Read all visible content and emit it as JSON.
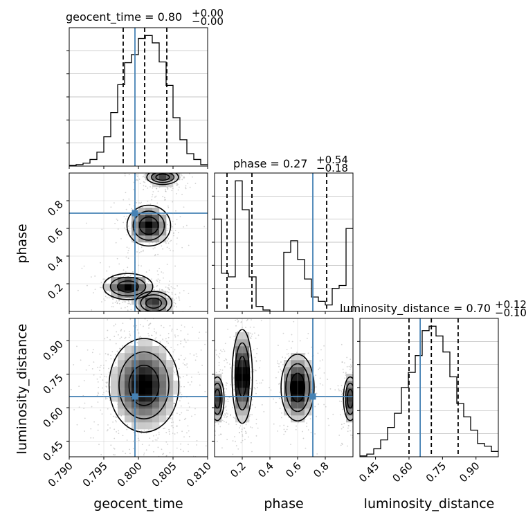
{
  "chart_data": {
    "type": "corner",
    "parameters": [
      "geocent_time",
      "phase",
      "luminosity_distance"
    ],
    "truths": {
      "geocent_time": 0.7995,
      "phase": 0.71,
      "luminosity_distance": 0.65
    },
    "titles": [
      {
        "parameter": "geocent_time",
        "label": "geocent_time = 0.80",
        "sup": "+0.00",
        "sub": "−0.00"
      },
      {
        "parameter": "phase",
        "label": "phase = 0.27",
        "sup": "+0.54",
        "sub": "−0.18"
      },
      {
        "parameter": "luminosity_distance",
        "label": "luminosity_distance = 0.70",
        "sup": "+0.12",
        "sub": "−0.10"
      }
    ],
    "ranges": {
      "geocent_time": [
        0.79,
        0.81
      ],
      "phase": [
        0.0,
        1.0
      ],
      "luminosity_distance": [
        0.38,
        1.0
      ]
    },
    "tick_labels": {
      "geocent_time": [
        "0.790",
        "0.795",
        "0.800",
        "0.805",
        "0.810"
      ],
      "phase": [
        "0.2",
        "0.4",
        "0.6",
        "0.8"
      ],
      "luminosity_distance": [
        "0.45",
        "0.60",
        "0.75",
        "0.90"
      ]
    },
    "quantiles": {
      "geocent_time": [
        0.7978,
        0.8009,
        0.8041
      ],
      "phase": [
        0.09,
        0.27,
        0.81
      ],
      "luminosity_distance": [
        0.6,
        0.7,
        0.82
      ]
    },
    "histograms": {
      "geocent_time": {
        "edges": [
          0.79,
          0.791,
          0.792,
          0.793,
          0.794,
          0.795,
          0.796,
          0.797,
          0.798,
          0.799,
          0.8,
          0.801,
          0.802,
          0.803,
          0.804,
          0.805,
          0.806,
          0.807,
          0.808,
          0.809,
          0.81
        ],
        "counts": [
          1,
          2,
          4,
          9,
          19,
          40,
          73,
          111,
          141,
          152,
          174,
          178,
          168,
          142,
          110,
          66,
          36,
          17,
          9,
          2
        ]
      },
      "phase": {
        "edges": [
          0.0,
          0.05,
          0.1,
          0.15,
          0.2,
          0.25,
          0.3,
          0.35,
          0.4,
          0.45,
          0.5,
          0.55,
          0.6,
          0.65,
          0.7,
          0.75,
          0.8,
          0.85,
          0.9,
          0.95,
          1.0
        ],
        "counts": [
          128,
          53,
          48,
          181,
          141,
          48,
          7,
          2,
          0,
          0,
          82,
          98,
          72,
          45,
          20,
          14,
          9,
          32,
          36,
          115
        ]
      },
      "luminosity_distance": {
        "edges": [
          0.38,
          0.411,
          0.442,
          0.473,
          0.504,
          0.535,
          0.566,
          0.597,
          0.628,
          0.659,
          0.69,
          0.721,
          0.752,
          0.783,
          0.814,
          0.845,
          0.876,
          0.907,
          0.938,
          0.969,
          1.0
        ],
        "counts": [
          1,
          3,
          9,
          19,
          33,
          49,
          78,
          95,
          114,
          142,
          147,
          136,
          118,
          90,
          60,
          45,
          30,
          15,
          12,
          6
        ]
      }
    },
    "pair_modes": [
      {
        "x": "geocent_time",
        "y": "phase",
        "modes": [
          {
            "x": 0.8035,
            "y": 0.97,
            "sx": 0.0013,
            "sy": 0.03,
            "w": 0.7
          },
          {
            "x": 0.8015,
            "y": 0.62,
            "sx": 0.0015,
            "sy": 0.07,
            "w": 1.0
          },
          {
            "x": 0.7985,
            "y": 0.18,
            "sx": 0.0017,
            "sy": 0.045,
            "w": 1.0
          },
          {
            "x": 0.8022,
            "y": 0.06,
            "sx": 0.0014,
            "sy": 0.045,
            "w": 0.8
          }
        ]
      },
      {
        "x": "geocent_time",
        "y": "luminosity_distance",
        "modes": [
          {
            "x": 0.8008,
            "y": 0.7,
            "sx": 0.0024,
            "sy": 0.1,
            "w": 1.0
          }
        ]
      },
      {
        "x": "phase",
        "y": "luminosity_distance",
        "modes": [
          {
            "x": 0.2,
            "y": 0.74,
            "sx": 0.035,
            "sy": 0.1,
            "w": 1.0
          },
          {
            "x": 0.6,
            "y": 0.69,
            "sx": 0.06,
            "sy": 0.075,
            "w": 0.9
          },
          {
            "x": 0.02,
            "y": 0.64,
            "sx": 0.03,
            "sy": 0.06,
            "w": 0.6
          },
          {
            "x": 0.98,
            "y": 0.64,
            "sx": 0.03,
            "sy": 0.06,
            "w": 0.6
          }
        ]
      }
    ],
    "colors": {
      "truth": "#4682b4",
      "line": "#000000",
      "grid": "#b0b0b0"
    },
    "grid": true
  }
}
